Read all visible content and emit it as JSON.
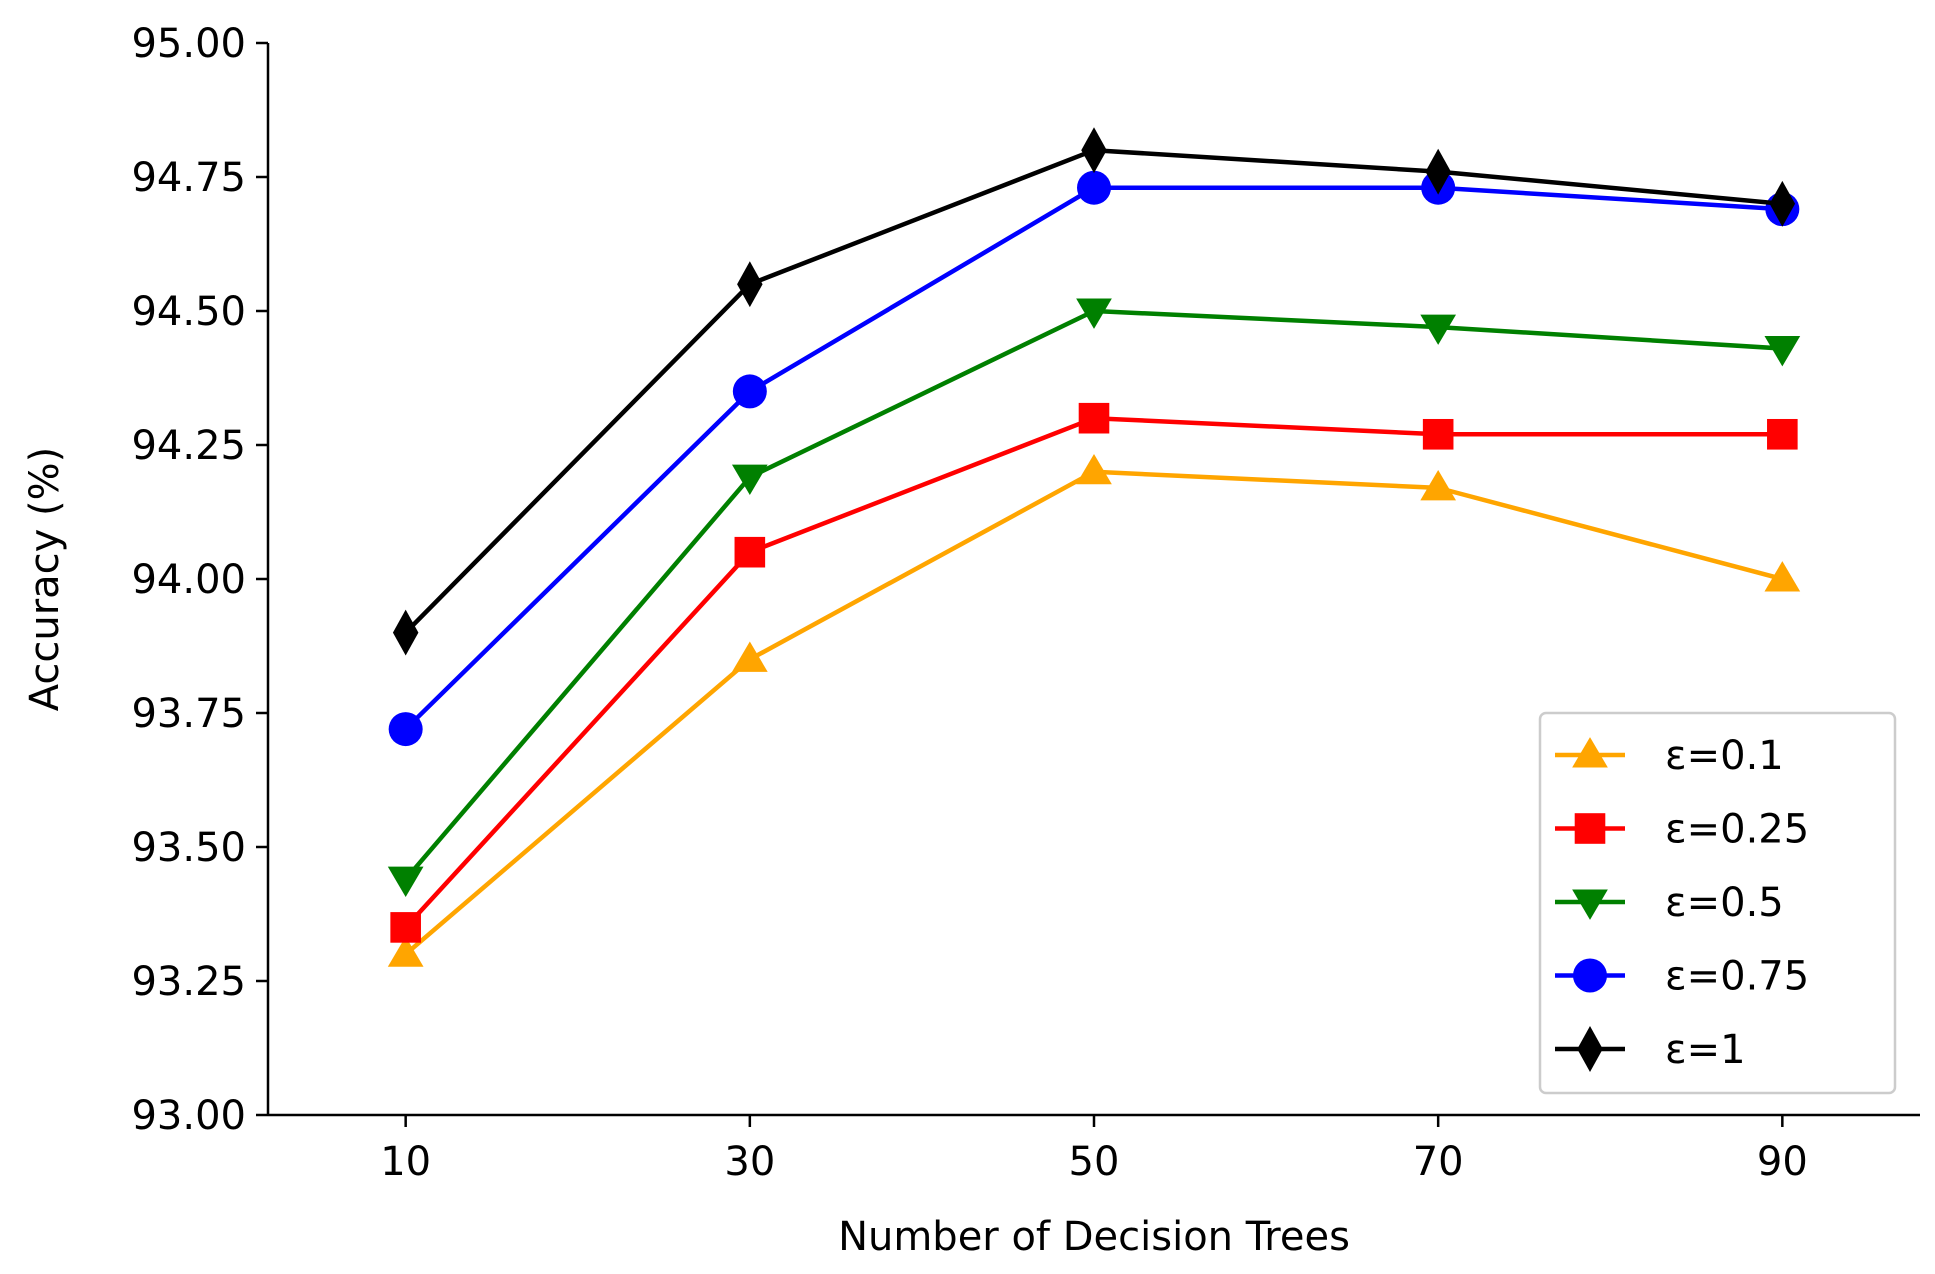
{
  "chart_data": {
    "type": "line",
    "title": "",
    "xlabel": "Number of Decision Trees",
    "ylabel": "Accuracy (%)",
    "x": [
      10,
      30,
      50,
      70,
      90
    ],
    "x_tick_labels": [
      "10",
      "30",
      "50",
      "70",
      "90"
    ],
    "ylim": [
      93.0,
      95.0
    ],
    "y_ticks": [
      93.0,
      93.25,
      93.5,
      93.75,
      94.0,
      94.25,
      94.5,
      94.75,
      95.0
    ],
    "y_tick_labels": [
      "93.00",
      "93.25",
      "93.50",
      "93.75",
      "94.00",
      "94.25",
      "94.50",
      "94.75",
      "95.00"
    ],
    "grid": false,
    "legend_position": "lower-right",
    "series": [
      {
        "name": "ε=0.1",
        "color": "#FFA500",
        "marker": "triangle-up",
        "values": [
          93.3,
          93.85,
          94.2,
          94.17,
          94.0
        ]
      },
      {
        "name": "ε=0.25",
        "color": "#FF0000",
        "marker": "square",
        "values": [
          93.35,
          94.05,
          94.3,
          94.27,
          94.27
        ]
      },
      {
        "name": "ε=0.5",
        "color": "#008000",
        "marker": "triangle-down",
        "values": [
          93.44,
          94.19,
          94.5,
          94.47,
          94.43
        ]
      },
      {
        "name": "ε=0.75",
        "color": "#0000FF",
        "marker": "circle",
        "values": [
          93.72,
          94.35,
          94.73,
          94.73,
          94.69
        ]
      },
      {
        "name": "ε=1",
        "color": "#000000",
        "marker": "diamond",
        "values": [
          93.9,
          94.55,
          94.8,
          94.76,
          94.7
        ]
      }
    ]
  }
}
